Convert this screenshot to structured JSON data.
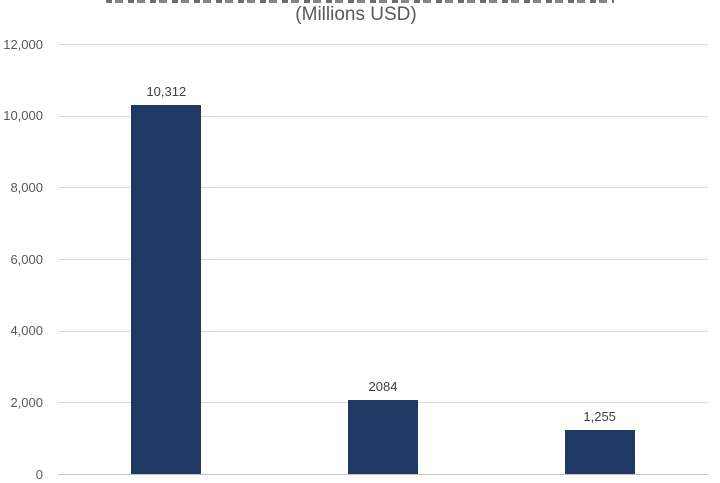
{
  "chart": {
    "subtitle": "(Millions USD)"
  },
  "chart_data": {
    "type": "bar",
    "title": "(Millions USD)",
    "title_position": "top-center",
    "categories": [
      "",
      "",
      ""
    ],
    "values": [
      10312,
      2084,
      1255
    ],
    "data_labels": [
      "10,312",
      "2084",
      "1,255"
    ],
    "xlabel": "",
    "ylabel": "",
    "ylim": [
      0,
      12000
    ],
    "ytick_interval": 2000,
    "ytick_labels": [
      "0",
      "2,000",
      "4,000",
      "6,000",
      "8,000",
      "10,000",
      "12,000"
    ],
    "grid": true,
    "legend": false,
    "colors": {
      "bar": "#203864",
      "gridline": "#d9d9d9",
      "axis_line": "#c3c3c3",
      "tick_label": "#595959",
      "data_label": "#404040",
      "title": "#595959",
      "background": "#ffffff"
    }
  }
}
